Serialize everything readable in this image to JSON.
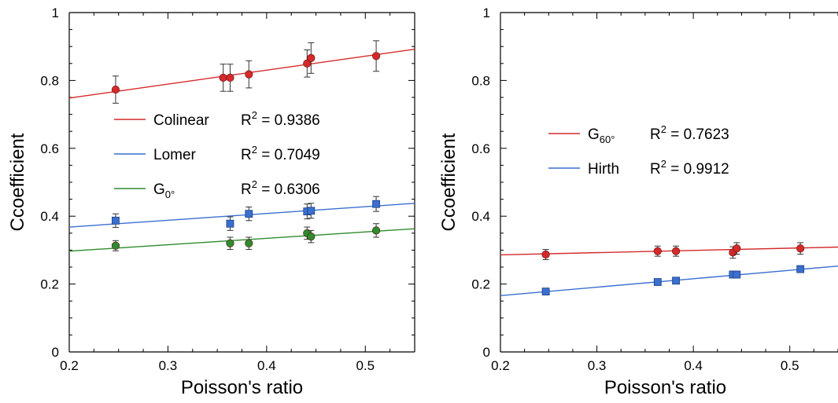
{
  "chart_data": [
    {
      "type": "scatter",
      "title": "",
      "xlabel": "Poisson's ratio",
      "ylabel": "Ccoefficient",
      "xlim": [
        0.2,
        0.55
      ],
      "ylim": [
        0,
        1
      ],
      "x_ticks": [
        "0.2",
        "0.3",
        "0.4",
        "0.5"
      ],
      "y_ticks": [
        "0",
        "0.2",
        "0.4",
        "0.6",
        "0.8",
        "1"
      ],
      "legend_placement": "center-left",
      "series": [
        {
          "name": "Colinear",
          "legend_main": "Colinear",
          "legend_sub": "",
          "r2_label": "R",
          "r2_sup": "2",
          "r2_value": " = 0.9386",
          "color": "#d42a2a",
          "marker": "circle",
          "x": [
            0.247,
            0.356,
            0.363,
            0.382,
            0.441,
            0.445,
            0.511
          ],
          "y": [
            0.773,
            0.808,
            0.808,
            0.818,
            0.85,
            0.866,
            0.872
          ],
          "err": [
            0.04,
            0.04,
            0.04,
            0.04,
            0.04,
            0.045,
            0.045
          ],
          "fit": [
            [
              0.2,
              0.748
            ],
            [
              0.55,
              0.892
            ]
          ]
        },
        {
          "name": "Lomer",
          "legend_main": "Lomer",
          "legend_sub": "",
          "r2_label": "R",
          "r2_sup": "2",
          "r2_value": " = 0.7049",
          "color": "#3a6fd0",
          "marker": "square",
          "x": [
            0.247,
            0.363,
            0.382,
            0.441,
            0.445,
            0.511
          ],
          "y": [
            0.387,
            0.378,
            0.407,
            0.414,
            0.416,
            0.436
          ],
          "err": [
            0.02,
            0.02,
            0.02,
            0.022,
            0.022,
            0.022
          ],
          "fit": [
            [
              0.2,
              0.368
            ],
            [
              0.55,
              0.438
            ]
          ]
        },
        {
          "name": "G0°",
          "legend_main": "G",
          "legend_sub": "0°",
          "r2_label": "R",
          "r2_sup": "2",
          "r2_value": " = 0.6306",
          "color": "#2e8b2e",
          "marker": "circle",
          "x": [
            0.247,
            0.363,
            0.382,
            0.441,
            0.445,
            0.511
          ],
          "y": [
            0.313,
            0.32,
            0.32,
            0.35,
            0.34,
            0.358
          ],
          "err": [
            0.015,
            0.018,
            0.018,
            0.018,
            0.018,
            0.02
          ],
          "fit": [
            [
              0.2,
              0.297
            ],
            [
              0.55,
              0.363
            ]
          ]
        }
      ]
    },
    {
      "type": "scatter",
      "title": "",
      "xlabel": "Poisson's ratio",
      "ylabel": "Ccoefficient",
      "xlim": [
        0.2,
        0.55
      ],
      "ylim": [
        0,
        1
      ],
      "x_ticks": [
        "0.2",
        "0.3",
        "0.4",
        "0.5"
      ],
      "y_ticks": [
        "0",
        "0.2",
        "0.4",
        "0.6",
        "0.8",
        "1"
      ],
      "legend_placement": "center-left",
      "series": [
        {
          "name": "G60°",
          "legend_main": "G",
          "legend_sub": "60°",
          "r2_label": "R",
          "r2_sup": "2",
          "r2_value": " = 0.7623",
          "color": "#d42a2a",
          "marker": "circle",
          "x": [
            0.247,
            0.363,
            0.382,
            0.441,
            0.445,
            0.511
          ],
          "y": [
            0.287,
            0.297,
            0.297,
            0.293,
            0.305,
            0.305
          ],
          "err": [
            0.015,
            0.015,
            0.015,
            0.017,
            0.017,
            0.017
          ],
          "fit": [
            [
              0.2,
              0.286
            ],
            [
              0.55,
              0.309
            ]
          ]
        },
        {
          "name": "Hirth",
          "legend_main": "Hirth",
          "legend_sub": "",
          "r2_label": "R",
          "r2_sup": "2",
          "r2_value": " = 0.9912",
          "color": "#3a6fd0",
          "marker": "square",
          "x": [
            0.247,
            0.363,
            0.382,
            0.441,
            0.445,
            0.511
          ],
          "y": [
            0.178,
            0.206,
            0.21,
            0.228,
            0.228,
            0.244
          ],
          "err": [
            0.008,
            0.008,
            0.008,
            0.01,
            0.01,
            0.01
          ],
          "fit": [
            [
              0.2,
              0.166
            ],
            [
              0.55,
              0.253
            ]
          ]
        }
      ]
    }
  ]
}
